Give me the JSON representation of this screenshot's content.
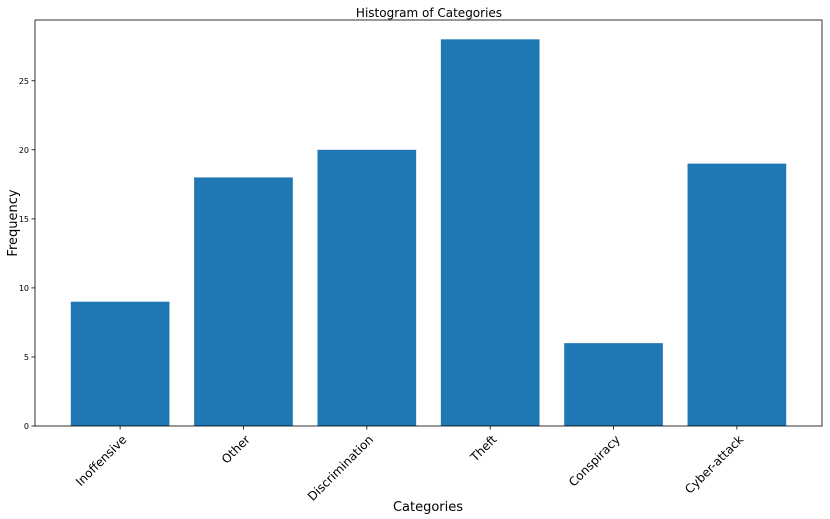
{
  "chart_data": {
    "type": "bar",
    "title": "Histogram of Categories",
    "xlabel": "Categories",
    "ylabel": "Frequency",
    "categories": [
      "Inoffensive",
      "Other",
      "Discrimination",
      "Theft",
      "Conspiracy",
      "Cyber-attack"
    ],
    "values": [
      9,
      18,
      20,
      28,
      6,
      19
    ],
    "ylim": [
      0,
      29.4
    ],
    "yticks": [
      0,
      5,
      10,
      15,
      20,
      25
    ],
    "ytick_labels": [
      "0",
      "5",
      "10",
      "15",
      "20",
      "25"
    ],
    "grid": false,
    "bar_color": "#1f77b4",
    "xtick_rotation": -45
  }
}
